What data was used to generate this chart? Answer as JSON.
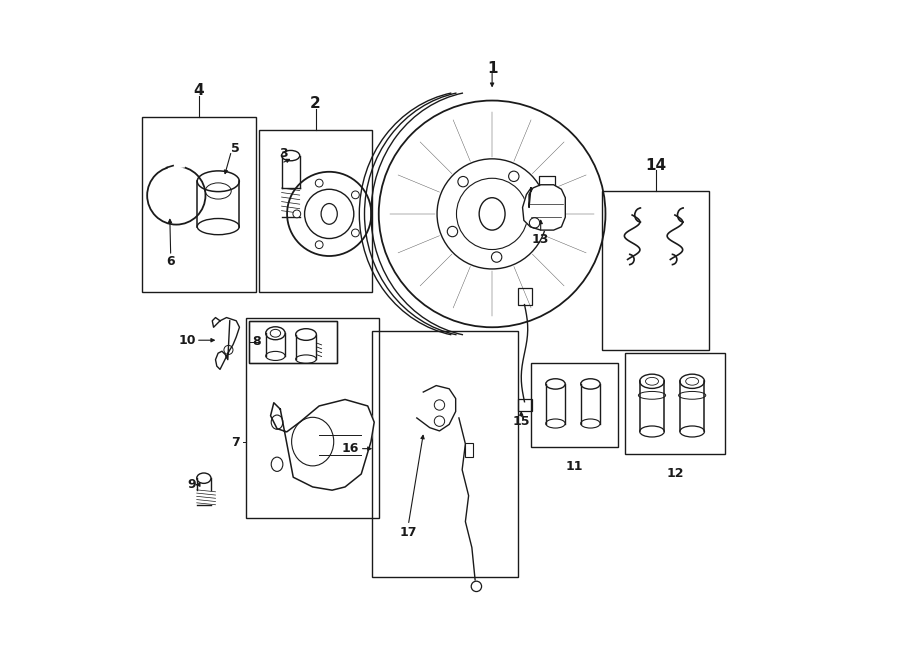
{
  "bg_color": "#ffffff",
  "line_color": "#1a1a1a",
  "fig_width": 9.0,
  "fig_height": 6.61,
  "dpi": 100,
  "label_fontsize": 11,
  "small_fontsize": 9,
  "boxes": {
    "seal_kit": [
      0.025,
      0.56,
      0.175,
      0.27
    ],
    "hub": [
      0.205,
      0.56,
      0.175,
      0.25
    ],
    "caliper": [
      0.185,
      0.21,
      0.205,
      0.31
    ],
    "abs_sensor": [
      0.38,
      0.12,
      0.225,
      0.38
    ],
    "spring_kit": [
      0.735,
      0.47,
      0.165,
      0.245
    ],
    "pin11": [
      0.625,
      0.32,
      0.135,
      0.13
    ],
    "pin12": [
      0.77,
      0.31,
      0.155,
      0.155
    ]
  },
  "inner_boxes": {
    "caliper_bolt": [
      0.19,
      0.45,
      0.135,
      0.065
    ]
  }
}
